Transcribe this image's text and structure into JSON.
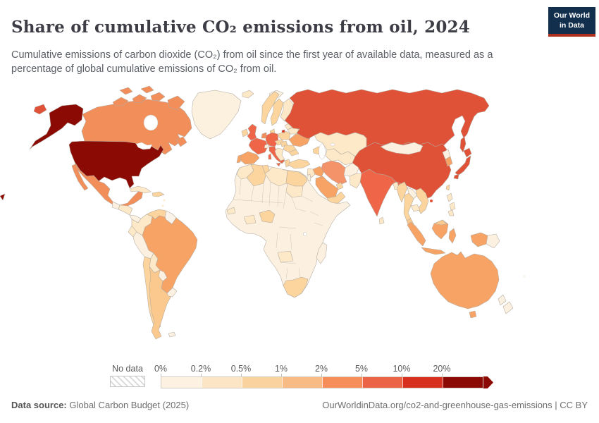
{
  "header": {
    "title": "Share of cumulative CO₂ emissions from oil, 2024",
    "subtitle": "Cumulative emissions of carbon dioxide (CO₂) from oil since the first year of available data, measured as a percentage of global cumulative emissions of CO₂ from oil.",
    "logo": {
      "line1": "Our World",
      "line2": "in Data",
      "bg_color": "#12304e",
      "accent_color": "#b0301f"
    }
  },
  "legend": {
    "no_data_label": "No data",
    "bins": [
      {
        "label": "0%",
        "color": "#FDF2E2"
      },
      {
        "label": "0.2%",
        "color": "#FCE5C4"
      },
      {
        "label": "0.5%",
        "color": "#FAD29E"
      },
      {
        "label": "1%",
        "color": "#F9BB84"
      },
      {
        "label": "2%",
        "color": "#F68E59"
      },
      {
        "label": "5%",
        "color": "#EC6446"
      },
      {
        "label": "10%",
        "color": "#D7301F"
      },
      {
        "label": "20%",
        "color": "#8B0A03"
      }
    ]
  },
  "footer": {
    "source_label": "Data source:",
    "source_value": " Global Carbon Budget (2025)",
    "right": "OurWorldinData.org/co2-and-greenhouse-gas-emissions | CC BY"
  },
  "map": {
    "ocean": "#ffffff",
    "border_color": "#b3aba1",
    "countries": {
      "greenland": "#FCF0DE",
      "canada": "#F28E59",
      "united-states": "#8B0A03",
      "mexico": "#F28E59",
      "guatemala": "#FCF1E0",
      "honduras-nicaragua": "#FDE8C7",
      "costa-rica-panama": "#FCF1E0",
      "cuba": "#FDE8C7",
      "hispaniola": "#FBD49E",
      "caribbean": "#FDE8C7",
      "colombia": "#FDE8C7",
      "venezuela": "#FBD49E",
      "guyanas": "#F9F3EA",
      "brazil": "#F7A365",
      "ecuador": "#FDE8C7",
      "peru": "#FCF1E0",
      "bolivia": "#FDE8C7",
      "paraguay": "#FCF1E0",
      "chile": "#FBD49E",
      "argentina": "#FBC88D",
      "uruguay": "#FCF1E0",
      "falkland-islands": "#FCF1E0",
      "iceland": "#FDE8C7",
      "ireland": "#FBD49E",
      "united-kingdom": "#EE6548",
      "norway": "#FBD49E",
      "sweden": "#FBD49E",
      "finland": "#FDE8C7",
      "denmark": "#FBD49E",
      "germany": "#EE6548",
      "benelux": "#F28E59",
      "france": "#EE6548",
      "spain": "#F7A365",
      "portugal": "#F7A365",
      "italy": "#EE6548",
      "switzerland": "#FCF1E0",
      "austria-czechia": "#FBD49E",
      "poland": "#FBD49E",
      "baltics": "#FDE8C7",
      "belarus": "#FDE8C7",
      "ukraine": "#F7A365",
      "romania": "#FBD49E",
      "hungary-slovakia": "#FBD49E",
      "balkans": "#FDE8C7",
      "bulgaria": "#FBD49E",
      "greece": "#FBD49E",
      "svalbard": "#FCF1E0",
      "russia": "#DF5237",
      "russia-kaliningrad": "#D7301F",
      "kazakhstan": "#FDE8C7",
      "central-asia": "#FDE8C7",
      "caucasus": "#FBD49E",
      "turkey": "#FBD49E",
      "levant": "#FDE8C7",
      "israel-jordan": "#FCF1E0",
      "iraq": "#F7A365",
      "iran": "#F4936A",
      "saudi-arabia": "#F7A365",
      "yemen-oman": "#FBD49E",
      "gulf-states": "#FBD49E",
      "afghanistan": "#FCF1E0",
      "pakistan": "#FDE8C7",
      "india": "#EE6548",
      "bangladesh": "#FDE8C7",
      "sri-lanka": "#FDE8C7",
      "africa": "#FCF1E0",
      "morocco": "#FDE8C7",
      "algeria": "#FBD49E",
      "tunisia": "#FBD49E",
      "libya": "#FDE8C7",
      "egypt": "#FBD49E",
      "sudan": "#FDE8C7",
      "senegal": "#FDE8C7",
      "nigeria": "#FBD49E",
      "ghana-ivory-coast": "#FDE8C7",
      "angola": "#FDE8C7",
      "south-africa": "#FBD49E",
      "madagascar": "#FCF1E0",
      "china": "#DF5237",
      "mongolia": "#FCF1E0",
      "north-korea": "#FCF1E0",
      "south-korea": "#F7A365",
      "japan": "#DF5237",
      "taiwan": "#FBD49E",
      "myanmar": "#FBD49E",
      "laos": "#FCF1E0",
      "thailand": "#FBD49E",
      "vietnam": "#FBD49E",
      "cambodia": "#FDE8C7",
      "malaysia": "#FBC88D",
      "indonesia": "#F7A365",
      "papua-new-guinea": "#FCF1E0",
      "philippines": "#FDE8C7",
      "australia": "#F7A365",
      "new-zealand": "#FCF1E0",
      "fiji": "#FCF1E0"
    }
  },
  "chart_data": {
    "type": "choropleth",
    "title": "Share of cumulative CO₂ emissions from oil, 2024",
    "unit": "% of global cumulative CO₂ emissions from oil",
    "year": 2024,
    "legend_bins": [
      "0%",
      "0.2%",
      "0.5%",
      "1%",
      "2%",
      "5%",
      "10%",
      "20%"
    ],
    "bin_colors": [
      "#FDF2E2",
      "#FCE5C4",
      "#FAD29E",
      "#F9BB84",
      "#F68E59",
      "#EC6446",
      "#D7301F",
      "#8B0A03"
    ],
    "no_data_style": "gray diagonal hatch",
    "countries_by_bin": {
      ">20%": [
        "United States"
      ],
      "5%–20%": [
        "Russia",
        "China",
        "Japan",
        "United Kingdom",
        "France",
        "Germany",
        "Italy",
        "India"
      ],
      "2%–5%": [
        "Canada",
        "Mexico",
        "Brazil",
        "Spain",
        "Portugal",
        "Ukraine",
        "Iran",
        "Iraq",
        "Saudi Arabia",
        "South Korea",
        "Indonesia",
        "Australia",
        "Benelux"
      ],
      "1%–2%": [
        "Argentina",
        "Malaysia"
      ],
      "0.5%–1%": [
        "Venezuela",
        "Chile",
        "Norway",
        "Sweden",
        "Denmark",
        "Ireland",
        "Poland",
        "Romania",
        "Greece",
        "Bulgaria",
        "Turkey",
        "Algeria",
        "Tunisia",
        "Egypt",
        "Nigeria",
        "South Africa",
        "Caucasus",
        "Yemen",
        "Oman",
        "Gulf states",
        "Myanmar",
        "Thailand",
        "Vietnam",
        "Taiwan",
        "Hispaniola"
      ],
      "0.2%–0.5%": [
        "Colombia",
        "Ecuador",
        "Bolivia",
        "Cuba",
        "Finland",
        "Iceland",
        "Baltics",
        "Belarus",
        "Balkans",
        "Switzerland-neighbors",
        "Kazakhstan",
        "Central Asia",
        "Levant",
        "Pakistan",
        "Bangladesh",
        "Sri Lanka",
        "Morocco",
        "Libya",
        "Sudan",
        "Senegal",
        "Ghana",
        "Angola",
        "Cambodia",
        "Philippines"
      ],
      "0%–0.2%": [
        "Greenland",
        "Peru",
        "Paraguay",
        "Uruguay",
        "Mongolia",
        "Afghanistan",
        "North Korea",
        "Laos",
        "most of Sub-Saharan Africa",
        "Madagascar",
        "Papua New Guinea",
        "New Zealand",
        "Fiji"
      ]
    }
  }
}
